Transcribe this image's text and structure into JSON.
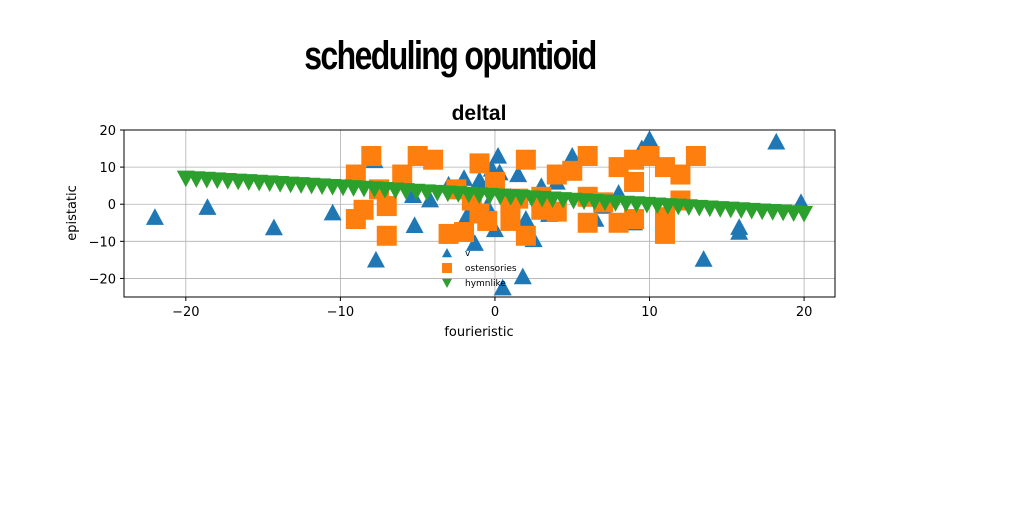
{
  "figure": {
    "title": "scheduling opuntioid"
  },
  "chart_data": {
    "type": "scatter",
    "title": "deltal",
    "xlabel": "fourieristic",
    "ylabel": "epistatic",
    "xlim": [
      -24,
      22
    ],
    "ylim": [
      -25,
      20
    ],
    "xticks": [
      -20,
      -10,
      0,
      10,
      20
    ],
    "yticks": [
      -20,
      -10,
      0,
      10,
      20
    ],
    "xtick_labels": [
      "−20",
      "−10",
      "0",
      "10",
      "20"
    ],
    "ytick_labels": [
      "−20",
      "−10",
      "0",
      "10",
      "20"
    ],
    "grid": true,
    "legend_position": "lower-center",
    "series": [
      {
        "name": "v",
        "marker": "triangle-up",
        "color": "#1f77b4",
        "points": [
          [
            -22,
            -3.5
          ],
          [
            -18.6,
            -0.8
          ],
          [
            -14.3,
            -6.3
          ],
          [
            -10.5,
            -2.3
          ],
          [
            -9.3,
            7.2
          ],
          [
            -7.8,
            11.8
          ],
          [
            -7.7,
            -15
          ],
          [
            -5.3,
            2.4
          ],
          [
            -5.2,
            -5.7
          ],
          [
            -4.2,
            1.2
          ],
          [
            -3.0,
            5.2
          ],
          [
            -2.0,
            7.0
          ],
          [
            -1.8,
            -3.0
          ],
          [
            -1.3,
            -10.5
          ],
          [
            -1.0,
            6.5
          ],
          [
            -0.5,
            -0.5
          ],
          [
            -0.2,
            9.5
          ],
          [
            0,
            -6.8
          ],
          [
            0.2,
            13
          ],
          [
            0.3,
            8.5
          ],
          [
            0.5,
            -22.5
          ],
          [
            1.0,
            2.0
          ],
          [
            1.5,
            8.0
          ],
          [
            1.8,
            -19.5
          ],
          [
            2.0,
            -4.0
          ],
          [
            2.5,
            -9.5
          ],
          [
            3.0,
            4.8
          ],
          [
            3.5,
            -2.7
          ],
          [
            4.0,
            6.0
          ],
          [
            5.0,
            13
          ],
          [
            6.5,
            -4.0
          ],
          [
            7.0,
            -0.5
          ],
          [
            8.0,
            3.0
          ],
          [
            9.0,
            12.0
          ],
          [
            9.5,
            15.0
          ],
          [
            10.0,
            17.5
          ],
          [
            9.0,
            -5.0
          ],
          [
            13.5,
            -14.8
          ],
          [
            15.8,
            -7.5
          ],
          [
            15.8,
            -6.2
          ],
          [
            18.2,
            16.8
          ],
          [
            19.8,
            0.5
          ]
        ]
      },
      {
        "name": "ostensories",
        "marker": "square",
        "color": "#ff7f0e",
        "points": [
          [
            -9.0,
            8.0
          ],
          [
            -9.0,
            -4.0
          ],
          [
            -8.5,
            -1.5
          ],
          [
            -8.0,
            13.0
          ],
          [
            -7.5,
            4.0
          ],
          [
            -7.0,
            -0.5
          ],
          [
            -7.0,
            -8.5
          ],
          [
            -6.0,
            8.0
          ],
          [
            -5.0,
            13.0
          ],
          [
            -4.0,
            12.0
          ],
          [
            -3.0,
            -8.0
          ],
          [
            -2.5,
            4.0
          ],
          [
            -2.0,
            -7.5
          ],
          [
            -1.5,
            1.0
          ],
          [
            -1.0,
            -2.5
          ],
          [
            -1.0,
            11.0
          ],
          [
            -0.5,
            -4.5
          ],
          [
            0,
            6.0
          ],
          [
            1.0,
            -4.5
          ],
          [
            1.5,
            1.5
          ],
          [
            2.0,
            12.0
          ],
          [
            2.0,
            -8.5
          ],
          [
            3.0,
            -1.5
          ],
          [
            4.0,
            8.0
          ],
          [
            4.0,
            -2.0
          ],
          [
            5.0,
            9.0
          ],
          [
            6.0,
            13.0
          ],
          [
            6.0,
            2.0
          ],
          [
            6.0,
            -5.0
          ],
          [
            7.0,
            0.5
          ],
          [
            8.0,
            10.0
          ],
          [
            8.0,
            -5.0
          ],
          [
            9.0,
            6.0
          ],
          [
            9.0,
            12.0
          ],
          [
            9.0,
            -4.0
          ],
          [
            10.0,
            13.0
          ],
          [
            11.0,
            10.0
          ],
          [
            11.0,
            -8.0
          ],
          [
            11.0,
            -3.5
          ],
          [
            12.0,
            8.0
          ],
          [
            12.0,
            1.0
          ],
          [
            13.0,
            13.0
          ],
          [
            1.0,
            0.5
          ],
          [
            3.0,
            2.0
          ]
        ]
      },
      {
        "name": "hymnlike",
        "marker": "triangle-down",
        "color": "#2ca02c",
        "line": {
          "x_start": -20,
          "x_end": 20,
          "y_start": 7.0,
          "y_end": -2.5,
          "count": 60
        }
      }
    ]
  }
}
